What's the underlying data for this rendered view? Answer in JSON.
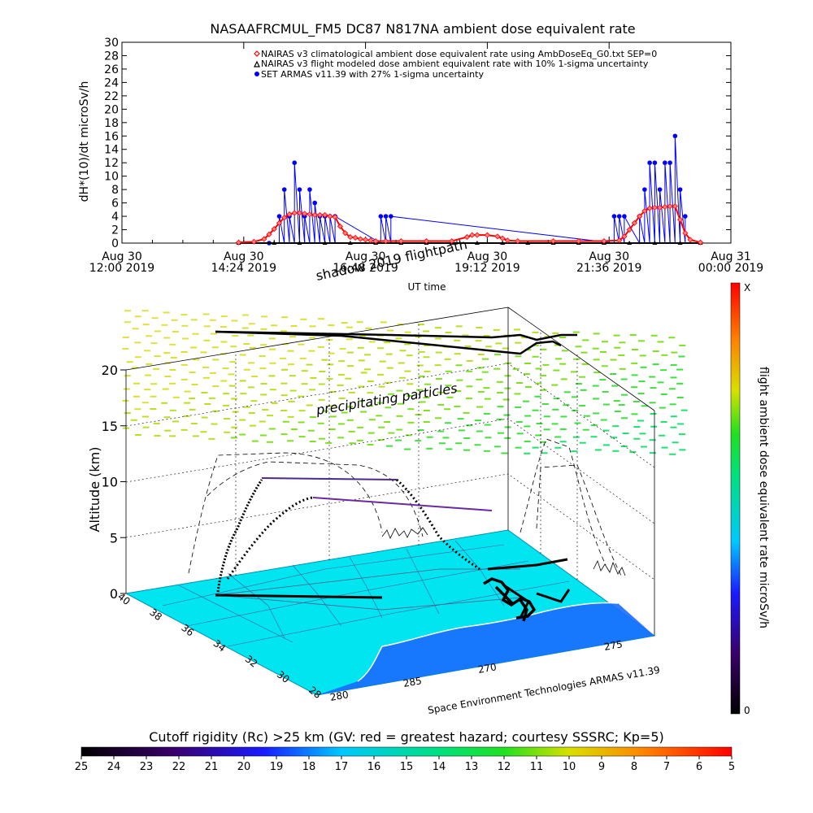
{
  "chart_data": [
    {
      "type": "scatter",
      "title": "NASAAFRCMUL_FM5 DC87 N817NA ambient dose equivalent rate",
      "ylabel": "dH*(10)/dt microSv/h",
      "xlabel": "UT time",
      "ylim": [
        0,
        30
      ],
      "yticks": [
        "0",
        "2",
        "4",
        "6",
        "8",
        "10",
        "12",
        "14",
        "16",
        "18",
        "20",
        "22",
        "24",
        "26",
        "28",
        "30"
      ],
      "xticks": [
        {
          "line1": "Aug 30",
          "line2": "12:00 2019",
          "hour": 12.0
        },
        {
          "line1": "Aug 30",
          "line2": "14:24 2019",
          "hour": 14.4
        },
        {
          "line1": "Aug 30",
          "line2": "16:48 2019",
          "hour": 16.8
        },
        {
          "line1": "Aug 30",
          "line2": "19:12 2019",
          "hour": 19.2
        },
        {
          "line1": "Aug 30",
          "line2": "21:36 2019",
          "hour": 21.6
        },
        {
          "line1": "Aug 31",
          "line2": "00:00 2019",
          "hour": 24.0
        }
      ],
      "xlim_hours": [
        12.0,
        24.0
      ],
      "legend_position": "top-right",
      "series": [
        {
          "name": "NAIRAS v3 climatological ambient dose equivalent rate using AmbDoseEq_G0.txt SEP=0",
          "marker": "diamond",
          "color": "#ff0000",
          "x_hours": [
            14.3,
            14.6,
            14.8,
            14.9,
            15.0,
            15.1,
            15.2,
            15.3,
            15.4,
            15.5,
            15.6,
            15.7,
            15.8,
            15.9,
            16.0,
            16.1,
            16.2,
            16.3,
            16.4,
            16.5,
            16.6,
            16.7,
            16.8,
            16.9,
            17.0,
            17.2,
            17.5,
            18.0,
            18.5,
            18.8,
            18.9,
            19.0,
            19.2,
            19.4,
            19.5,
            19.6,
            19.8,
            20.5,
            21.0,
            21.5,
            21.8,
            21.9,
            22.0,
            22.1,
            22.2,
            22.3,
            22.4,
            22.5,
            22.6,
            22.7,
            22.8,
            22.9,
            23.0,
            23.1,
            23.2,
            23.4
          ],
          "values": [
            0.1,
            0.2,
            0.6,
            1.3,
            2.1,
            3.0,
            3.8,
            4.3,
            4.5,
            4.5,
            4.4,
            4.3,
            4.2,
            4.2,
            4.2,
            4.0,
            3.9,
            2.5,
            1.5,
            0.9,
            0.8,
            0.6,
            0.5,
            0.4,
            0.3,
            0.3,
            0.3,
            0.3,
            0.3,
            0.9,
            1.2,
            1.2,
            1.2,
            1.0,
            0.7,
            0.4,
            0.3,
            0.3,
            0.3,
            0.3,
            0.4,
            1.0,
            2.0,
            3.0,
            4.0,
            4.8,
            5.2,
            5.3,
            5.3,
            5.4,
            5.5,
            5.5,
            3.5,
            1.5,
            0.5,
            0.1
          ]
        },
        {
          "name": "NAIRAS v3 flight modeled dose ambient equivalent rate with 10% 1-sigma uncertainty",
          "marker": "triangle",
          "color": "#000000",
          "x_hours": [
            14.3,
            15.0,
            15.5,
            16.0,
            16.5,
            17.0,
            17.5,
            18.0,
            18.5,
            19.0,
            19.5,
            20.0,
            20.5,
            21.0,
            21.5,
            22.0,
            22.5,
            23.0,
            23.4
          ],
          "values": [
            0,
            0,
            0,
            0,
            0,
            0,
            0,
            0,
            0,
            0,
            0,
            0,
            0,
            0,
            0,
            0,
            0,
            0,
            0
          ]
        },
        {
          "name": "SET ARMAS v11.39 with 27% 1-sigma uncertainty",
          "marker": "circle",
          "color": "#0000ff",
          "x_hours": [
            14.9,
            15.1,
            15.2,
            15.3,
            15.4,
            15.5,
            15.6,
            15.7,
            15.8,
            15.9,
            16.0,
            16.1,
            16.2,
            17.1,
            17.2,
            17.3,
            21.7,
            21.8,
            21.9,
            22.2,
            22.3,
            22.4,
            22.5,
            22.6,
            22.7,
            22.8,
            22.9,
            23.0,
            23.1
          ],
          "values": [
            0,
            4,
            8,
            4,
            12,
            8,
            4,
            8,
            6,
            4,
            4,
            4,
            4,
            4,
            4,
            4,
            4,
            4,
            4,
            4,
            8,
            12,
            12,
            8,
            12,
            12,
            16,
            8,
            4
          ]
        }
      ]
    },
    {
      "type": "scatter",
      "annotations": [
        "shadow 2019 flightpath",
        "precipitating particles"
      ],
      "zlabel": "Altitude (km)",
      "zticks": [
        "0",
        "5",
        "10",
        "15",
        "20"
      ],
      "lat_ticks": [
        "40",
        "38",
        "36",
        "34",
        "32",
        "30",
        "28"
      ],
      "lon_ticks": [
        "280",
        "285",
        "270",
        "275"
      ],
      "credit": "Space Environment Technologies ARMAS v11.39",
      "colorbar": {
        "label": "flight ambient dose equivalent rate microSv/h",
        "top_label": "X",
        "bottom_label": "0"
      }
    },
    {
      "type": "heatmap",
      "title": "Cutoff rigidity (Rc) >25 km (GV: red = greatest hazard; courtesy SSSRC; Kp=5)",
      "ticks": [
        "25",
        "24",
        "23",
        "22",
        "21",
        "20",
        "19",
        "18",
        "17",
        "16",
        "15",
        "14",
        "13",
        "12",
        "11",
        "10",
        "9",
        "8",
        "7",
        "6",
        "5"
      ]
    }
  ],
  "colors": {
    "nairas_clim": "#ff0000",
    "armas": "#0000ff",
    "ground": "#00e5f0",
    "water": "#1a6cff",
    "flight": "#000000"
  }
}
